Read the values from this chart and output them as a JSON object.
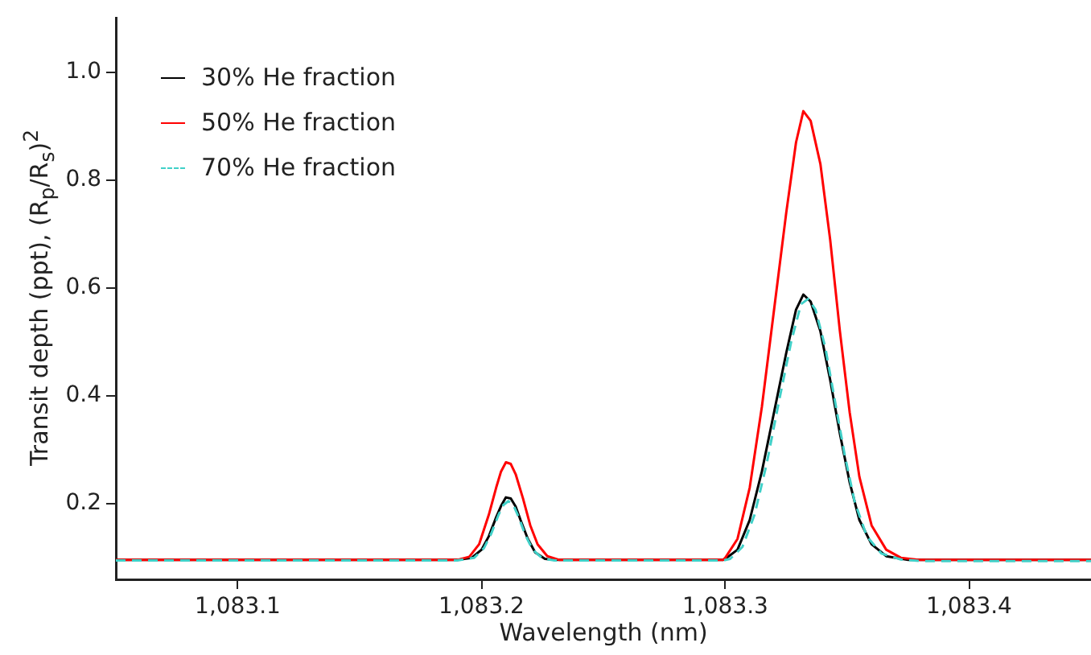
{
  "chart_data": {
    "type": "line",
    "xlabel": "Wavelength (nm)",
    "ylabel": "Transit depth (ppt), (R$_{p}$/R$_{s}$)$^{2}$",
    "xlim": [
      1083.05,
      1083.45
    ],
    "ylim": [
      0.06,
      1.1
    ],
    "xticks": [
      {
        "value": 1083.1,
        "label": "1,083.1"
      },
      {
        "value": 1083.2,
        "label": "1,083.2"
      },
      {
        "value": 1083.3,
        "label": "1,083.3"
      },
      {
        "value": 1083.4,
        "label": "1,083.4"
      }
    ],
    "yticks": [
      {
        "value": 0.2,
        "label": "0.2"
      },
      {
        "value": 0.4,
        "label": "0.4"
      },
      {
        "value": 0.6,
        "label": "0.6"
      },
      {
        "value": 0.8,
        "label": "0.8"
      },
      {
        "value": 1.0,
        "label": "1.0"
      }
    ],
    "grid": false,
    "legend": "top left",
    "marker": "none",
    "series": [
      {
        "name": "30% He fraction",
        "color": "#000000",
        "line_style": "solid",
        "x": [
          1083.05,
          1083.19,
          1083.196,
          1083.2,
          1083.203,
          1083.206,
          1083.208,
          1083.21,
          1083.212,
          1083.214,
          1083.216,
          1083.219,
          1083.222,
          1083.226,
          1083.23,
          1083.299,
          1083.3,
          1083.305,
          1083.31,
          1083.315,
          1083.32,
          1083.325,
          1083.329,
          1083.332,
          1083.335,
          1083.339,
          1083.343,
          1083.347,
          1083.351,
          1083.355,
          1083.36,
          1083.366,
          1083.375,
          1083.45
        ],
        "values": [
          0.096,
          0.096,
          0.1,
          0.115,
          0.14,
          0.175,
          0.196,
          0.212,
          0.21,
          0.195,
          0.17,
          0.135,
          0.11,
          0.098,
          0.096,
          0.096,
          0.098,
          0.115,
          0.17,
          0.26,
          0.37,
          0.48,
          0.56,
          0.588,
          0.575,
          0.52,
          0.43,
          0.33,
          0.24,
          0.17,
          0.125,
          0.103,
          0.096,
          0.096
        ]
      },
      {
        "name": "50% He fraction",
        "color": "#ff0000",
        "line_style": "solid",
        "x": [
          1083.05,
          1083.19,
          1083.195,
          1083.199,
          1083.203,
          1083.206,
          1083.208,
          1083.21,
          1083.212,
          1083.214,
          1083.217,
          1083.22,
          1083.223,
          1083.227,
          1083.232,
          1083.299,
          1083.3,
          1083.305,
          1083.31,
          1083.315,
          1083.32,
          1083.325,
          1083.329,
          1083.332,
          1083.335,
          1083.339,
          1083.343,
          1083.347,
          1083.351,
          1083.355,
          1083.36,
          1083.366,
          1083.372,
          1083.38,
          1083.45
        ],
        "values": [
          0.096,
          0.096,
          0.102,
          0.125,
          0.18,
          0.23,
          0.26,
          0.277,
          0.274,
          0.255,
          0.21,
          0.16,
          0.125,
          0.103,
          0.096,
          0.096,
          0.1,
          0.135,
          0.23,
          0.38,
          0.56,
          0.74,
          0.87,
          0.928,
          0.91,
          0.83,
          0.69,
          0.52,
          0.37,
          0.25,
          0.16,
          0.115,
          0.1,
          0.096,
          0.096
        ]
      },
      {
        "name": "70% He fraction",
        "color": "#40d0c8",
        "line_style": "dashed",
        "x": [
          1083.05,
          1083.19,
          1083.197,
          1083.201,
          1083.204,
          1083.207,
          1083.209,
          1083.211,
          1083.213,
          1083.215,
          1083.218,
          1083.221,
          1083.225,
          1083.23,
          1083.299,
          1083.302,
          1083.307,
          1083.312,
          1083.317,
          1083.322,
          1083.327,
          1083.331,
          1083.334,
          1083.337,
          1083.341,
          1083.345,
          1083.349,
          1083.353,
          1083.358,
          1083.364,
          1083.372,
          1083.38,
          1083.45
        ],
        "values": [
          0.095,
          0.095,
          0.1,
          0.118,
          0.145,
          0.18,
          0.198,
          0.205,
          0.198,
          0.178,
          0.142,
          0.115,
          0.099,
          0.095,
          0.095,
          0.098,
          0.12,
          0.18,
          0.275,
          0.39,
          0.5,
          0.57,
          0.58,
          0.56,
          0.49,
          0.39,
          0.29,
          0.205,
          0.14,
          0.108,
          0.097,
          0.094,
          0.094
        ]
      }
    ]
  }
}
